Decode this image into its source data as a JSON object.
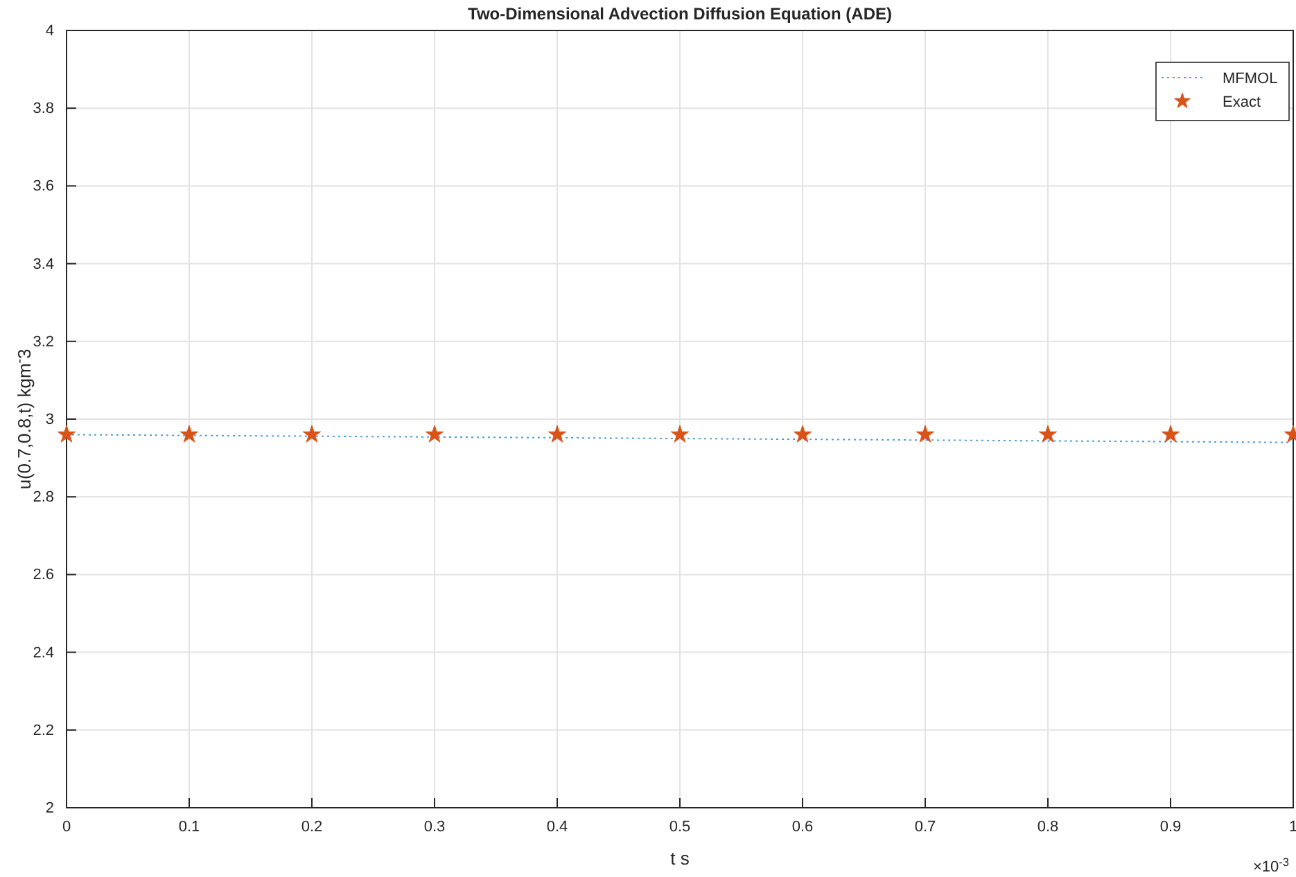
{
  "chart_data": {
    "type": "line",
    "title": "Two-Dimensional Advection Diffusion Equation (ADE)",
    "xlabel": "t s",
    "ylabel": "u(0.7,0.8,t) kgm$^{-}$3",
    "x": [
      0,
      0.1,
      0.2,
      0.3,
      0.4,
      0.5,
      0.6,
      0.7,
      0.8,
      0.9,
      1
    ],
    "series": [
      {
        "name": "MFMOL",
        "color": "#4d9fd8",
        "line_style": "dotted",
        "marker": "none",
        "values": [
          2.96,
          2.958,
          2.956,
          2.954,
          2.952,
          2.95,
          2.948,
          2.946,
          2.944,
          2.942,
          2.94
        ]
      },
      {
        "name": "Exact",
        "type": "scatter",
        "color": "#d95319",
        "marker": "star",
        "values": [
          2.96,
          2.96,
          2.96,
          2.96,
          2.96,
          2.96,
          2.96,
          2.96,
          2.96,
          2.96,
          2.96
        ]
      }
    ],
    "xlim": [
      0,
      1
    ],
    "xticks": [
      0,
      0.1,
      0.2,
      0.3,
      0.4,
      0.5,
      0.6,
      0.7,
      0.8,
      0.9,
      1
    ],
    "ylim": [
      2,
      4
    ],
    "yticks": [
      2,
      2.2,
      2.4,
      2.6,
      2.8,
      3,
      3.2,
      3.4,
      3.6,
      3.8,
      4
    ],
    "annotations": [
      "×10$^{-3}$"
    ],
    "grid": true,
    "legend": "top right"
  }
}
